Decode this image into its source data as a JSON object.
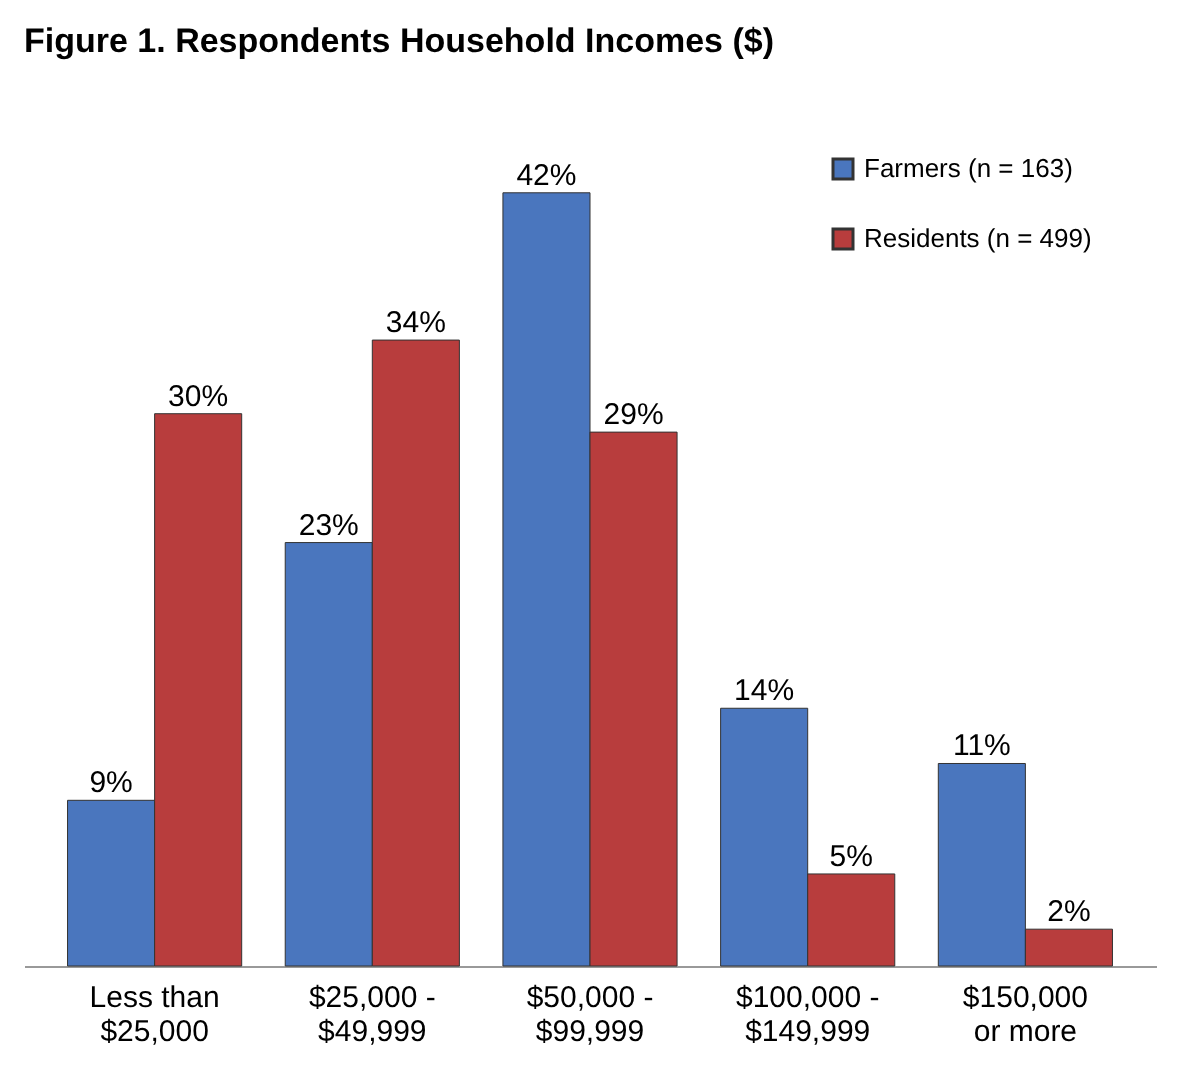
{
  "chart_data": {
    "type": "bar",
    "title": "Figure 1. Respondents Household Incomes ($)",
    "categories": [
      "Less than\n$25,000",
      "$25,000 -\n$49,999",
      "$50,000 -\n$99,999",
      "$100,000 -\n$149,999",
      "$150,000\nor more"
    ],
    "series": [
      {
        "name": "Farmers  (n = 163)",
        "color": "#4a76be",
        "values": [
          9,
          23,
          42,
          14,
          11
        ],
        "value_labels": [
          "9%",
          "23%",
          "42%",
          "14%",
          "11%"
        ]
      },
      {
        "name": "Residents  (n = 499)",
        "color": "#b83d3d",
        "values": [
          30,
          34,
          29,
          5,
          2
        ],
        "value_labels": [
          "30%",
          "34%",
          "29%",
          "5%",
          "2%"
        ]
      }
    ],
    "legend": "top right",
    "grid": false
  }
}
